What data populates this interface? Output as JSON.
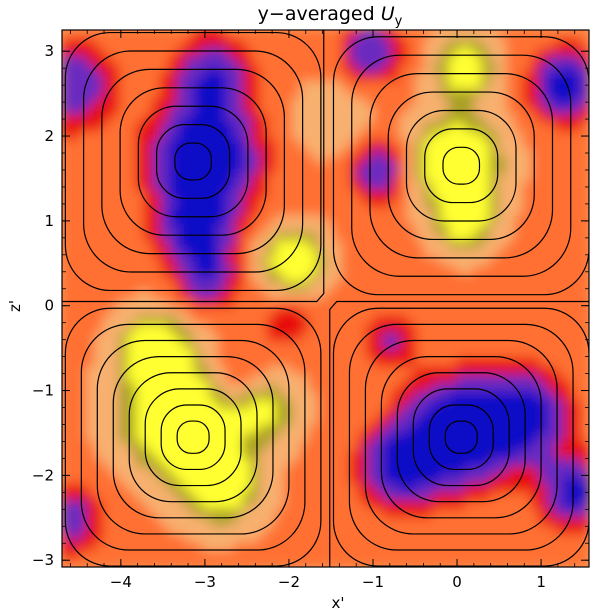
{
  "chart_data": {
    "type": "heatmap",
    "title_prefix": "y−averaged ",
    "title_var": "U",
    "title_sub": "y",
    "xlabel": "x'",
    "ylabel": "z'",
    "xlim": [
      -4.7,
      1.57
    ],
    "ylim": [
      -3.08,
      3.25
    ],
    "x_ticks": [
      {
        "value": -4,
        "label": "−4"
      },
      {
        "value": -3,
        "label": "−3"
      },
      {
        "value": -2,
        "label": "−2"
      },
      {
        "value": -1,
        "label": "−1"
      },
      {
        "value": 0,
        "label": "0"
      },
      {
        "value": 1,
        "label": "1"
      }
    ],
    "y_ticks": [
      {
        "value": -3,
        "label": "−3"
      },
      {
        "value": -2,
        "label": "−2"
      },
      {
        "value": -1,
        "label": "−1"
      },
      {
        "value": 0,
        "label": "0"
      },
      {
        "value": 1,
        "label": "1"
      },
      {
        "value": 2,
        "label": "2"
      },
      {
        "value": 3,
        "label": "3"
      }
    ],
    "colormap": [
      "#1010c8",
      "#6a2ac0",
      "#e81010",
      "#ff7030",
      "#f8b070",
      "#a8a020",
      "#ffff30"
    ],
    "background_color": "#f8a060",
    "contour_color": "#000000",
    "contour_cells": [
      {
        "cx": -3.14,
        "cz": 1.7,
        "levels": 7
      },
      {
        "cx": 0.05,
        "cz": 1.65,
        "levels": 7
      },
      {
        "cx": -3.14,
        "cz": -1.55,
        "levels": 8
      },
      {
        "cx": 0.05,
        "cz": -1.55,
        "levels": 8
      }
    ],
    "blobs": [
      {
        "x": -3.0,
        "z": 1.75,
        "r": 0.6,
        "v": -1.0
      },
      {
        "x": -3.1,
        "z": 0.9,
        "r": 0.45,
        "v": -0.7
      },
      {
        "x": -2.9,
        "z": 2.7,
        "r": 0.45,
        "v": -0.6
      },
      {
        "x": -2.95,
        "z": 0.3,
        "r": 0.35,
        "v": -0.5
      },
      {
        "x": -4.6,
        "z": 2.6,
        "r": 0.5,
        "v": -0.6
      },
      {
        "x": -4.6,
        "z": -2.5,
        "r": 0.4,
        "v": -0.5
      },
      {
        "x": -2.6,
        "z": -0.9,
        "r": 0.4,
        "v": -0.35
      },
      {
        "x": 0.0,
        "z": 1.7,
        "r": 0.5,
        "v": 1.0
      },
      {
        "x": 0.1,
        "z": 2.8,
        "r": 0.35,
        "v": 0.8
      },
      {
        "x": 0.1,
        "z": 1.0,
        "r": 0.35,
        "v": 0.7
      },
      {
        "x": -1.95,
        "z": 0.55,
        "r": 0.35,
        "v": 0.9
      },
      {
        "x": -3.3,
        "z": -1.3,
        "r": 0.65,
        "v": 1.0
      },
      {
        "x": -3.6,
        "z": -0.5,
        "r": 0.4,
        "v": 0.8
      },
      {
        "x": -2.8,
        "z": -2.1,
        "r": 0.45,
        "v": 0.8
      },
      {
        "x": -2.3,
        "z": -1.2,
        "r": 0.4,
        "v": 0.6
      },
      {
        "x": 0.0,
        "z": -1.5,
        "r": 0.6,
        "v": -1.0
      },
      {
        "x": 0.8,
        "z": -1.3,
        "r": 0.5,
        "v": -0.8
      },
      {
        "x": 1.4,
        "z": -2.2,
        "r": 0.4,
        "v": -0.7
      },
      {
        "x": -0.7,
        "z": -1.9,
        "r": 0.45,
        "v": -0.7
      },
      {
        "x": -0.9,
        "z": 1.6,
        "r": 0.35,
        "v": -0.6
      },
      {
        "x": 1.3,
        "z": 2.6,
        "r": 0.4,
        "v": -0.8
      },
      {
        "x": -1.0,
        "z": 3.0,
        "r": 0.35,
        "v": -0.6
      },
      {
        "x": -0.8,
        "z": -0.4,
        "r": 0.3,
        "v": -0.4
      },
      {
        "x": -1.5,
        "z": 2.2,
        "r": 0.4,
        "v": 0.3
      },
      {
        "x": -2.0,
        "z": -0.2,
        "r": 0.3,
        "v": -0.3
      }
    ]
  }
}
